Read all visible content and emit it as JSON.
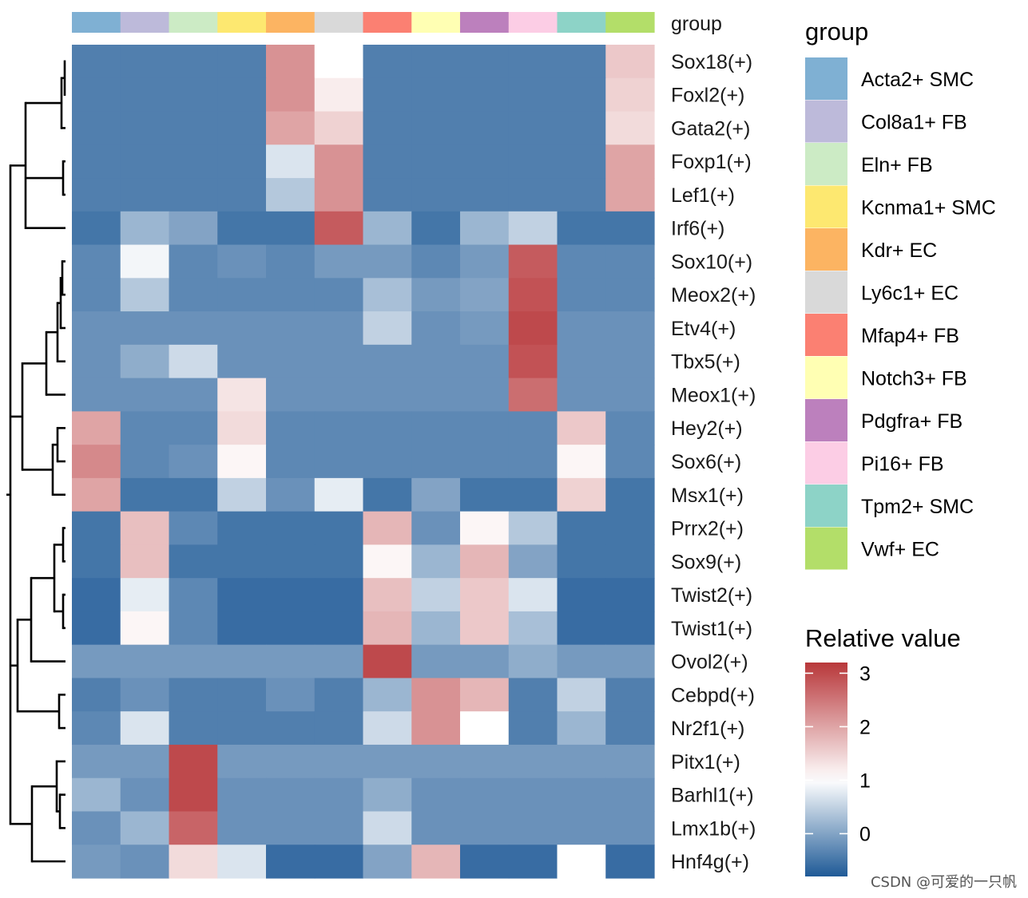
{
  "chart_data": {
    "type": "heatmap",
    "title": "",
    "columns": [
      "Acta2+ SMC",
      "Col8a1+ FB",
      "Eln+ FB",
      "Kcnma1+ SMC",
      "Kdr+ EC",
      "Ly6c1+ EC",
      "Mfap4+ FB",
      "Notch3+ FB",
      "Pdgfra+ FB",
      "Pi16+ FB",
      "Tpm2+ SMC",
      "Vwf+ EC"
    ],
    "column_colors": [
      "#7FB0D3",
      "#BDBADA",
      "#CCEBC5",
      "#FDE870",
      "#FCB462",
      "#D9D9D9",
      "#FB8072",
      "#FFFFB3",
      "#BC80BD",
      "#FCCDE5",
      "#8DD3C7",
      "#B3DE69"
    ],
    "annotation_label": "group",
    "rows": [
      "Sox18(+)",
      "Foxl2(+)",
      "Gata2(+)",
      "Foxp1(+)",
      "Lef1(+)",
      "Irf6(+)",
      "Sox10(+)",
      "Meox2(+)",
      "Etv4(+)",
      "Tbx5(+)",
      "Meox1(+)",
      "Hey2(+)",
      "Sox6(+)",
      "Msx1(+)",
      "Prrx2(+)",
      "Sox9(+)",
      "Twist2(+)",
      "Twist1(+)",
      "Ovol2(+)",
      "Cebpd(+)",
      "Nr2f1(+)",
      "Pitx1(+)",
      "Barhl1(+)",
      "Lmx1b(+)",
      "Hnf4g(+)"
    ],
    "values": [
      [
        -0.4,
        -0.4,
        -0.4,
        -0.4,
        2.2,
        1.0,
        -0.4,
        -0.4,
        -0.4,
        -0.4,
        -0.4,
        1.6
      ],
      [
        -0.4,
        -0.4,
        -0.4,
        -0.4,
        2.2,
        1.2,
        -0.4,
        -0.4,
        -0.4,
        -0.4,
        -0.4,
        1.5
      ],
      [
        -0.4,
        -0.4,
        -0.4,
        -0.4,
        2.0,
        1.5,
        -0.4,
        -0.4,
        -0.4,
        -0.4,
        -0.4,
        1.4
      ],
      [
        -0.4,
        -0.4,
        -0.4,
        -0.4,
        0.7,
        2.2,
        -0.4,
        -0.4,
        -0.4,
        -0.4,
        -0.4,
        2.0
      ],
      [
        -0.4,
        -0.4,
        -0.4,
        -0.4,
        0.4,
        2.2,
        -0.4,
        -0.4,
        -0.4,
        -0.4,
        -0.4,
        2.0
      ],
      [
        -0.5,
        0.2,
        0.0,
        -0.5,
        -0.5,
        2.8,
        0.2,
        -0.5,
        0.2,
        0.5,
        -0.5,
        -0.5
      ],
      [
        -0.3,
        0.9,
        -0.3,
        -0.2,
        -0.3,
        -0.1,
        -0.1,
        -0.3,
        -0.1,
        2.8,
        -0.3,
        -0.3
      ],
      [
        -0.3,
        0.4,
        -0.3,
        -0.3,
        -0.3,
        -0.3,
        0.3,
        -0.1,
        0.0,
        2.9,
        -0.3,
        -0.3
      ],
      [
        -0.2,
        -0.2,
        -0.2,
        -0.2,
        -0.2,
        -0.2,
        0.5,
        -0.2,
        -0.1,
        3.0,
        -0.2,
        -0.2
      ],
      [
        -0.2,
        0.1,
        0.6,
        -0.2,
        -0.2,
        -0.2,
        -0.2,
        -0.2,
        -0.2,
        2.9,
        -0.2,
        -0.2
      ],
      [
        -0.2,
        -0.2,
        -0.2,
        1.3,
        -0.2,
        -0.2,
        -0.2,
        -0.2,
        -0.2,
        2.6,
        -0.2,
        -0.2
      ],
      [
        2.0,
        -0.3,
        -0.3,
        1.4,
        -0.3,
        -0.3,
        -0.3,
        -0.3,
        -0.3,
        -0.3,
        1.6,
        -0.3
      ],
      [
        2.3,
        -0.3,
        -0.2,
        1.1,
        -0.3,
        -0.3,
        -0.3,
        -0.3,
        -0.3,
        -0.3,
        1.1,
        -0.3
      ],
      [
        2.0,
        -0.5,
        -0.5,
        0.5,
        -0.2,
        0.8,
        -0.5,
        0.0,
        -0.5,
        -0.5,
        1.5,
        -0.5
      ],
      [
        -0.5,
        1.7,
        -0.3,
        -0.5,
        -0.5,
        -0.5,
        1.8,
        -0.2,
        1.1,
        0.4,
        -0.5,
        -0.5
      ],
      [
        -0.5,
        1.7,
        -0.5,
        -0.5,
        -0.5,
        -0.5,
        1.1,
        0.2,
        1.8,
        0.0,
        -0.5,
        -0.5
      ],
      [
        -0.6,
        0.8,
        -0.3,
        -0.6,
        -0.6,
        -0.6,
        1.7,
        0.5,
        1.6,
        0.7,
        -0.6,
        -0.6
      ],
      [
        -0.6,
        1.1,
        -0.3,
        -0.6,
        -0.6,
        -0.6,
        1.8,
        0.2,
        1.6,
        0.3,
        -0.6,
        -0.6
      ],
      [
        -0.1,
        -0.1,
        -0.1,
        -0.1,
        -0.1,
        -0.1,
        3.0,
        -0.1,
        -0.1,
        0.1,
        -0.1,
        -0.1
      ],
      [
        -0.4,
        -0.2,
        -0.4,
        -0.4,
        -0.2,
        -0.4,
        0.2,
        2.2,
        1.8,
        -0.4,
        0.5,
        -0.4
      ],
      [
        -0.3,
        0.7,
        -0.4,
        -0.4,
        -0.4,
        -0.4,
        0.6,
        2.2,
        1.0,
        -0.4,
        0.2,
        -0.4
      ],
      [
        -0.1,
        -0.1,
        3.0,
        -0.1,
        -0.1,
        -0.1,
        -0.1,
        -0.1,
        -0.1,
        -0.1,
        -0.1,
        -0.1
      ],
      [
        0.2,
        -0.2,
        3.0,
        -0.2,
        -0.2,
        -0.2,
        0.1,
        -0.2,
        -0.2,
        -0.2,
        -0.2,
        -0.2
      ],
      [
        -0.2,
        0.2,
        2.7,
        -0.2,
        -0.2,
        -0.2,
        0.6,
        -0.2,
        -0.2,
        -0.2,
        -0.2,
        -0.2
      ],
      [
        -0.1,
        -0.2,
        1.4,
        0.7,
        -0.6,
        -0.6,
        0.0,
        1.8,
        -0.6,
        -0.6,
        1.0,
        -0.6
      ]
    ],
    "legend_group_title": "group",
    "legend_value_title": "Relative value",
    "value_range": [
      -0.8,
      3.2
    ],
    "colorbar_ticks": [
      3,
      2,
      1,
      0
    ],
    "colorbar_tick_labels": [
      "3",
      "2",
      "1",
      "0"
    ],
    "color_low": "#1F5A97",
    "color_mid": "#FFFFFF",
    "color_high": "#B8373A",
    "legend_position": "right",
    "dendrogram_side": "left"
  },
  "watermark": "CSDN @可爱的一只帆"
}
